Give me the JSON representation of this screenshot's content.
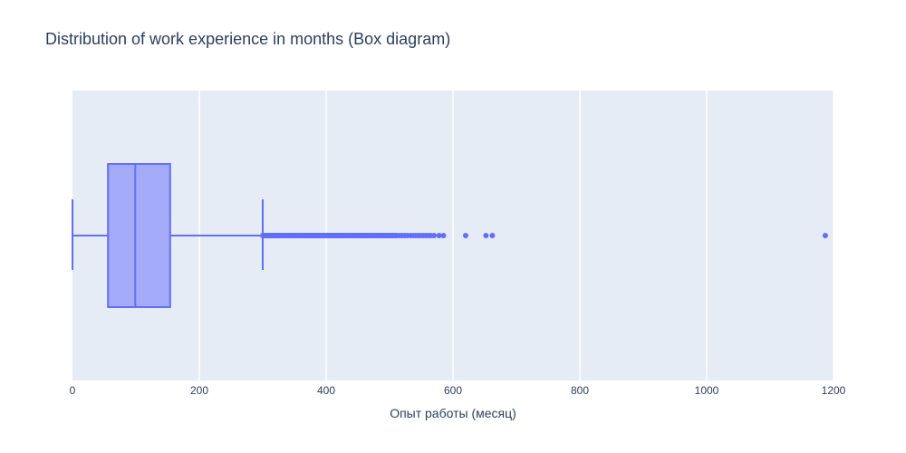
{
  "chart_data": {
    "type": "box",
    "orientation": "horizontal",
    "title": "Distribution of work experience in months (Box diagram)",
    "xlabel": "Опыт работы (месяц)",
    "ylabel": "",
    "xlim": [
      0,
      1200
    ],
    "xticks": [
      0,
      200,
      400,
      600,
      800,
      1000,
      1200
    ],
    "grid": true,
    "legend": "none",
    "colors": {
      "box_line": "#636efa",
      "box_fill": "#a3aaf7",
      "plot_bg": "#e5ecf6",
      "grid": "#ffffff",
      "text": "#2a3f5f"
    },
    "box": {
      "lower_fence": 0,
      "q1": 56,
      "median": 99,
      "q3": 154,
      "upper_fence": 300,
      "outlier_band": [
        300,
        510
      ],
      "outliers": [
        512,
        516,
        520,
        524,
        528,
        533,
        537,
        541,
        545,
        549,
        553,
        557,
        561,
        565,
        570,
        578,
        585,
        620,
        652,
        662,
        1187
      ]
    }
  }
}
